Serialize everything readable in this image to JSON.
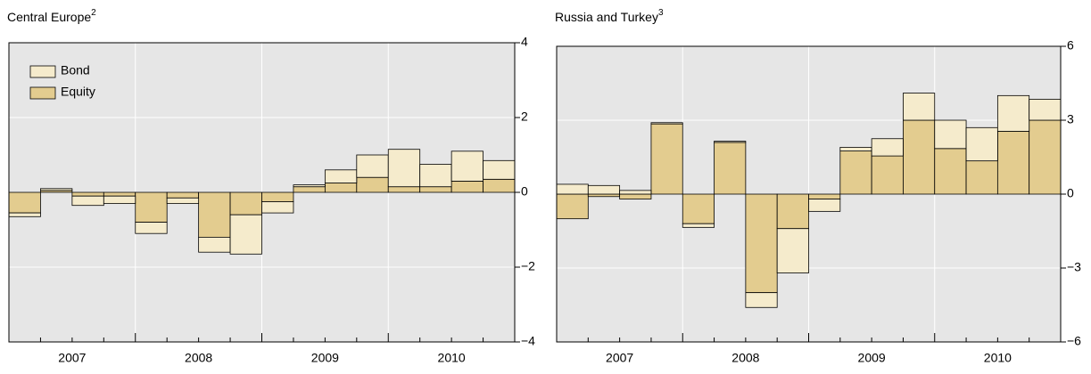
{
  "chart_data": [
    {
      "type": "bar",
      "stacked": true,
      "title": "Central Europe",
      "title_note": "2",
      "categories": [
        "2007",
        null,
        null,
        null,
        "2008",
        null,
        null,
        null,
        "2009",
        null,
        null,
        null,
        "2010",
        null,
        null,
        null
      ],
      "series": [
        {
          "name": "Equity",
          "color": "#e3cc8f",
          "values": [
            -0.55,
            0.05,
            -0.1,
            -0.1,
            -0.8,
            -0.15,
            -1.2,
            -0.6,
            -0.25,
            0.15,
            0.25,
            0.4,
            0.15,
            0.15,
            0.3,
            0.35
          ]
        },
        {
          "name": "Bond",
          "color": "#f5ebcc",
          "values": [
            -0.1,
            0.05,
            -0.25,
            -0.2,
            -0.3,
            -0.15,
            -0.4,
            -1.05,
            -0.3,
            0.05,
            0.35,
            0.6,
            1.0,
            0.6,
            0.8,
            0.5
          ]
        }
      ],
      "ylim": [
        -4,
        4
      ],
      "yticks": [
        {
          "value": -4,
          "label": "−4"
        },
        {
          "value": -2,
          "label": "−2"
        },
        0,
        2,
        4
      ],
      "grid": true,
      "legend": "upper left"
    },
    {
      "type": "bar",
      "stacked": true,
      "title": "Russia and Turkey",
      "title_note": "3",
      "categories": [
        "2007",
        null,
        null,
        null,
        "2008",
        null,
        null,
        null,
        "2009",
        null,
        null,
        null,
        "2010",
        null,
        null,
        null
      ],
      "series": [
        {
          "color": "#e3cc8f",
          "values": [
            -1.0,
            -0.1,
            -0.2,
            2.85,
            -1.2,
            2.1,
            -4.0,
            -1.4,
            -0.2,
            1.75,
            1.55,
            3.0,
            1.85,
            1.35,
            2.55,
            3.0
          ]
        },
        {
          "color": "#f5ebcc",
          "values": [
            0.4,
            0.35,
            0.15,
            0.05,
            -0.15,
            0.05,
            -0.6,
            -1.8,
            -0.5,
            0.15,
            0.7,
            1.1,
            1.15,
            1.35,
            1.45,
            0.85
          ]
        }
      ],
      "ylim": [
        -6,
        6
      ],
      "yticks": [
        {
          "value": -6,
          "label": "−6"
        },
        {
          "value": -3,
          "label": "−3"
        },
        0,
        3,
        6
      ],
      "grid": true
    }
  ]
}
